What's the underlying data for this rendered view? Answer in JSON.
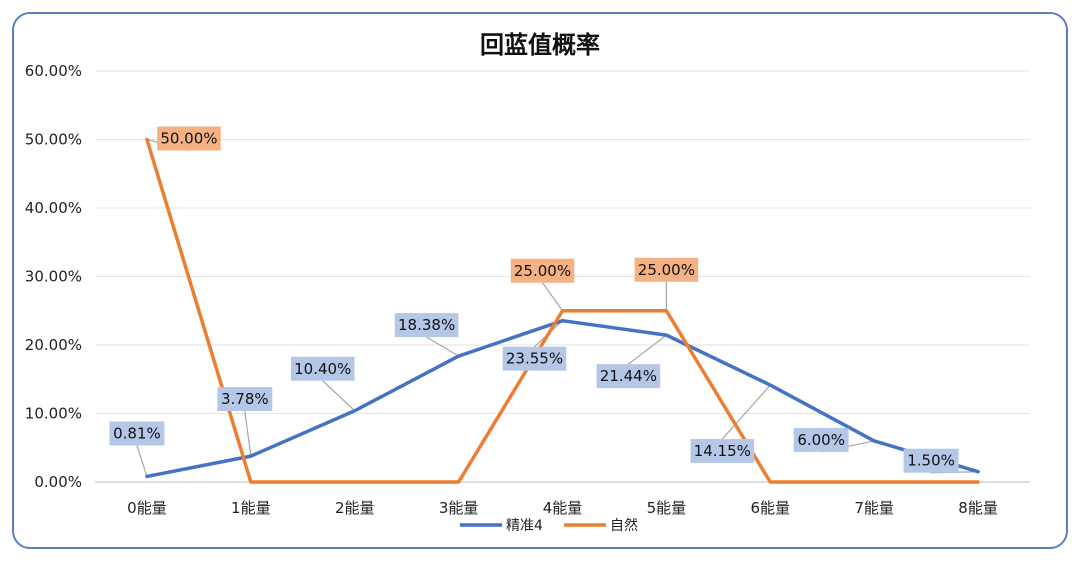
{
  "chart_data": {
    "type": "line",
    "title": "回蓝值概率",
    "categories": [
      "0能量",
      "1能量",
      "2能量",
      "3能量",
      "4能量",
      "5能量",
      "6能量",
      "7能量",
      "8能量"
    ],
    "ylim": [
      0,
      60
    ],
    "yticks": [
      "0.00%",
      "10.00%",
      "20.00%",
      "30.00%",
      "40.00%",
      "50.00%",
      "60.00%"
    ],
    "grid": true,
    "legend": "bottom",
    "series": [
      {
        "name": "精准4",
        "color": "#4472c4",
        "label_bg": "#b4c7e7",
        "values": [
          0.81,
          3.78,
          10.4,
          18.38,
          23.55,
          21.44,
          14.15,
          6.0,
          1.5
        ],
        "labels": [
          "0.81%",
          "3.78%",
          "10.40%",
          "18.38%",
          "23.55%",
          "21.44%",
          "14.15%",
          "6.00%",
          "1.50%"
        ]
      },
      {
        "name": "自然",
        "color": "#ed7d31",
        "label_bg": "#f4b183",
        "values": [
          50,
          0,
          0,
          0,
          25,
          25,
          0,
          0,
          0
        ],
        "labels": [
          "50.00%",
          "",
          "",
          "",
          "25.00%",
          "25.00%",
          "",
          "",
          ""
        ]
      }
    ]
  }
}
